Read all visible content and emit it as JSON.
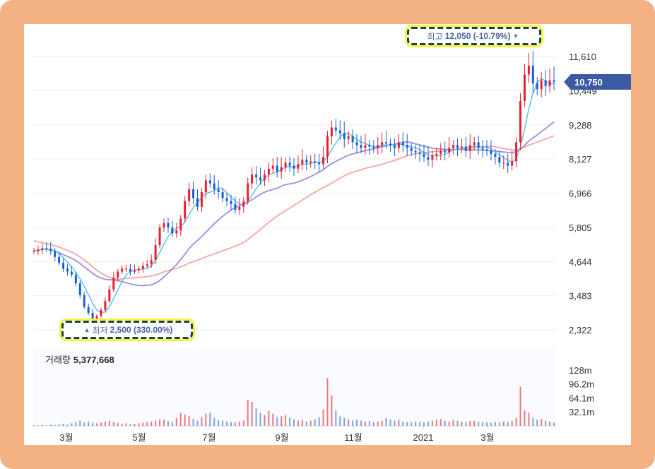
{
  "chart_data": {
    "type": "candlestick",
    "price_axis": {
      "ticks": [
        11610,
        10449,
        9288,
        8127,
        6966,
        5805,
        4644,
        3483,
        2322
      ],
      "tick_labels": [
        "11,610",
        "10,449",
        "9,288",
        "8,127",
        "6,966",
        "5,805",
        "4,644",
        "3,483",
        "2,322"
      ]
    },
    "volume_axis": {
      "ticks": [
        128,
        96.2,
        64.1,
        32.1
      ],
      "tick_labels": [
        "128m",
        "96.2m",
        "64.1m",
        "32.1m"
      ]
    },
    "x_labels": [
      "3월",
      "5월",
      "7월",
      "9월",
      "11월",
      "2021",
      "3월"
    ],
    "current_price": "10,750",
    "high": {
      "label": "최고",
      "value": "12,050 (-10.79%)",
      "price": 12050
    },
    "low": {
      "label": "최저",
      "value": "2,500 (330.00%)",
      "price": 2500
    },
    "volume": {
      "label": "거래량",
      "value": "5,377,668"
    },
    "close_series": [
      5000,
      5050,
      5100,
      5080,
      5000,
      4800,
      4600,
      4400,
      4300,
      4200,
      3900,
      3500,
      3100,
      2900,
      2700,
      2800,
      3000,
      3300,
      3700,
      4100,
      4300,
      4400,
      4400,
      4300,
      4350,
      4400,
      4500,
      4550,
      4700,
      5200,
      5800,
      5950,
      5800,
      5600,
      5700,
      6100,
      6700,
      7100,
      6800,
      6500,
      7000,
      7400,
      7300,
      7100,
      7000,
      6800,
      6700,
      6600,
      6400,
      6500,
      6700,
      7300,
      7600,
      7500,
      7400,
      7600,
      7800,
      7900,
      7700,
      7850,
      8000,
      7900,
      7800,
      7950,
      8100,
      8000,
      8050,
      8000,
      7950,
      8200,
      8900,
      9200,
      9100,
      9000,
      8800,
      8900,
      8700,
      8600,
      8500,
      8600,
      8550,
      8500,
      8600,
      8700,
      8650,
      8600,
      8500,
      8700,
      8600,
      8500,
      8400,
      8350,
      8300,
      8200,
      8100,
      8250,
      8300,
      8400,
      8350,
      8500,
      8600,
      8500,
      8550,
      8400,
      8600,
      8700,
      8500,
      8450,
      8400,
      8300,
      8200,
      8000,
      8000,
      7900,
      8050,
      8700,
      10100,
      11000,
      11300,
      10700,
      10500,
      10800,
      10600,
      10800,
      10750
    ],
    "volume_series": [
      2,
      1,
      2,
      1,
      3,
      2,
      4,
      5,
      3,
      6,
      9,
      12,
      8,
      10,
      7,
      6,
      8,
      10,
      12,
      9,
      7,
      5,
      6,
      4,
      5,
      6,
      7,
      9,
      10,
      12,
      15,
      14,
      11,
      9,
      18,
      30,
      26,
      22,
      16,
      12,
      20,
      28,
      30,
      18,
      14,
      12,
      10,
      9,
      8,
      10,
      12,
      60,
      55,
      40,
      30,
      25,
      35,
      28,
      20,
      22,
      25,
      18,
      15,
      12,
      14,
      10,
      12,
      15,
      20,
      38,
      110,
      70,
      35,
      22,
      18,
      15,
      12,
      14,
      12,
      10,
      11,
      9,
      10,
      12,
      18,
      15,
      12,
      14,
      10,
      9,
      8,
      10,
      9,
      8,
      10,
      12,
      14,
      16,
      12,
      10,
      14,
      12,
      10,
      9,
      11,
      12,
      10,
      9,
      8,
      7,
      9,
      8,
      10,
      9,
      12,
      18,
      90,
      35,
      30,
      18,
      14,
      16,
      12,
      10,
      8
    ],
    "ma_fast": true,
    "ma_mid": true,
    "ma_slow": true,
    "colors": {
      "up": "#e8202f",
      "down": "#1761d6",
      "ma_fast": "#5ec4e8",
      "ma_mid": "#9b8fe0",
      "ma_slow": "#f4a7a3",
      "callout_border": "#1f3f55",
      "callout_outline": "#f5f53a",
      "price_tag": "#3b5aa3"
    }
  }
}
